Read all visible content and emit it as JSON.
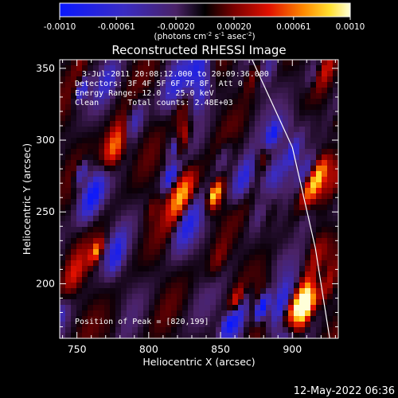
{
  "colorbar": {
    "ticks": [
      "-0.0010",
      "-0.00061",
      "-0.00020",
      "0.00020",
      "0.00061",
      "0.0010"
    ],
    "tick_values": [
      -0.001,
      -0.00061,
      -0.0002,
      0.0002,
      0.00061,
      0.001
    ],
    "range": [
      -0.001,
      0.001
    ],
    "unit_label": "(photons cm",
    "unit_exp1": "-2",
    "unit_mid": " s",
    "unit_exp2": "-1",
    "unit_mid2": " asec",
    "unit_exp3": "-2",
    "unit_close": ")"
  },
  "chart_data": {
    "type": "heatmap",
    "title": "Reconstructed RHESSI Image",
    "xlabel": "Heliocentric X (arcsec)",
    "ylabel": "Heliocentric Y (arcsec)",
    "xlim": [
      738,
      932
    ],
    "ylim": [
      162,
      356
    ],
    "xticks": [
      750,
      800,
      850,
      900
    ],
    "yticks": [
      200,
      250,
      300,
      350
    ],
    "grid": false,
    "colormap": "blue-purple-black-red-orange-yellow-white",
    "limb_curve": [
      [
        872,
        356
      ],
      [
        900,
        295
      ],
      [
        916,
        225
      ],
      [
        926,
        162
      ]
    ],
    "annotations": {
      "time": "3-Jul-2011 20:08:12.000 to 20:09:36.000",
      "detectors": "Detectors: 3F 4F 5F 6F 7F 8F, Att 0",
      "energy": "Energy Range: 12.0 - 25.0 keV",
      "method": "Clean      Total counts: 2.48E+03",
      "peak": "Position of Peak = [820,199]"
    }
  },
  "timestamp": "12-May-2022 06:36"
}
